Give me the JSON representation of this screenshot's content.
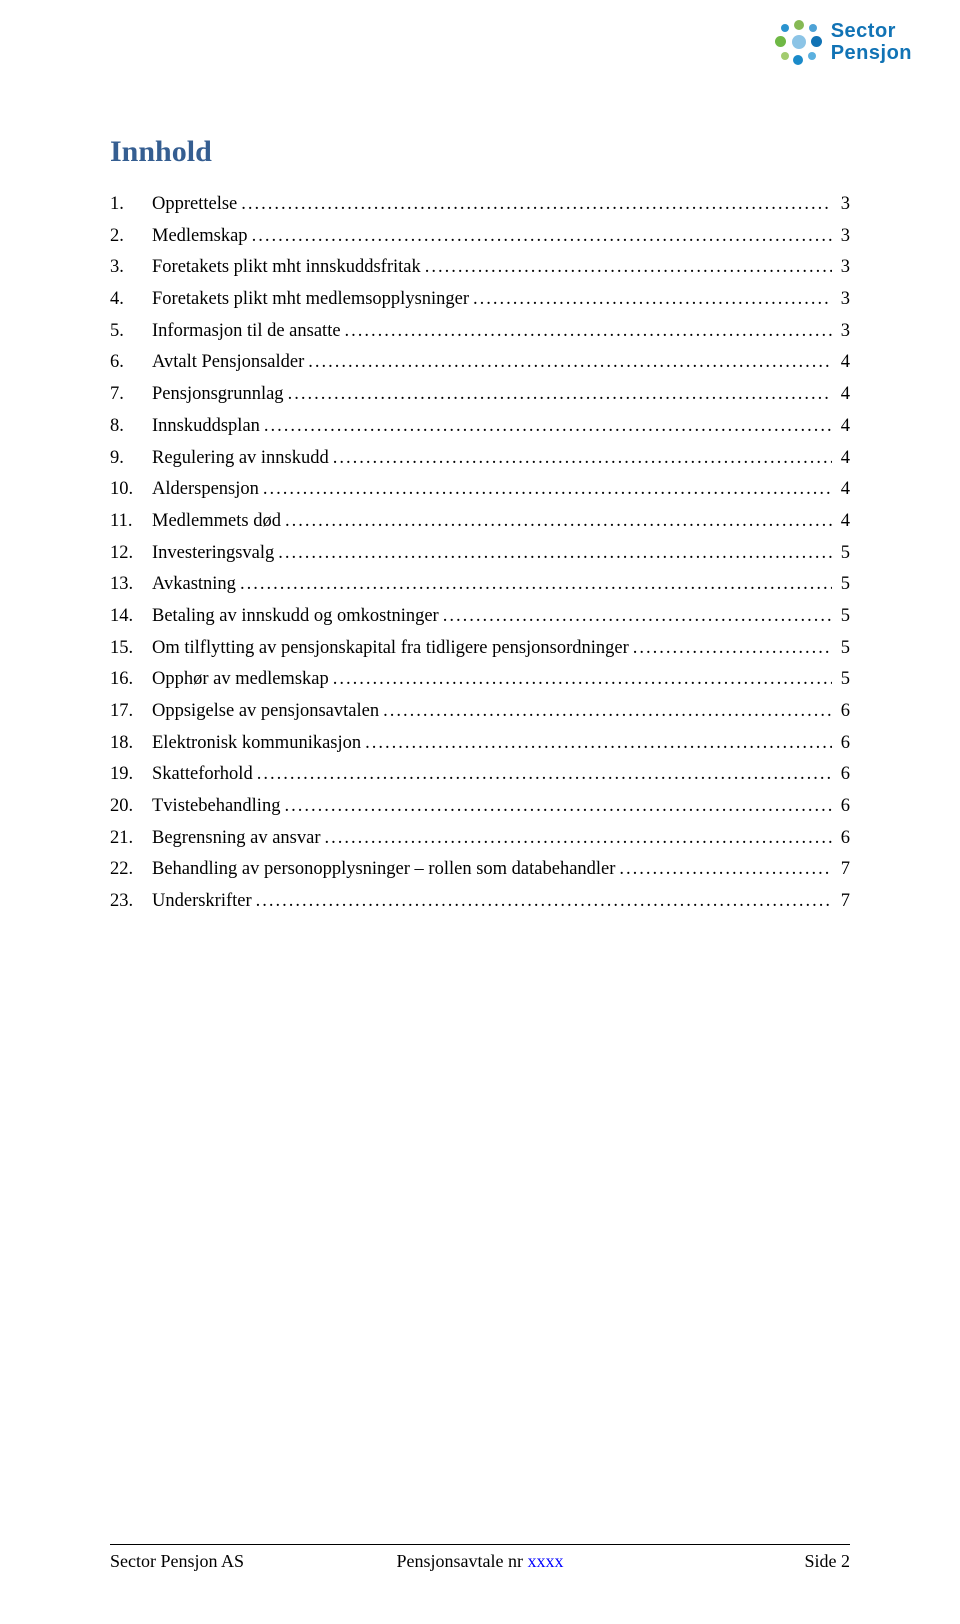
{
  "logo": {
    "line1": "Sector",
    "line2": "Pensjon",
    "text_color": "#1173b5",
    "dot_colors": [
      "#86b954",
      "#4ea2d6",
      "#1173b5",
      "#5bb0df",
      "#1a8ac9",
      "#a3cc6f",
      "#6fb845",
      "#2a93cf",
      "#8cc4e6"
    ]
  },
  "heading": "Innhold",
  "heading_color": "#355e91",
  "toc_fontsize": 18.5,
  "toc": [
    {
      "num": "1.",
      "title": "Opprettelse",
      "page": "3"
    },
    {
      "num": "2.",
      "title": "Medlemskap",
      "page": "3"
    },
    {
      "num": "3.",
      "title": "Foretakets plikt mht innskuddsfritak",
      "page": "3"
    },
    {
      "num": "4.",
      "title": "Foretakets plikt mht medlemsopplysninger",
      "page": "3"
    },
    {
      "num": "5.",
      "title": "Informasjon til de ansatte",
      "page": "3"
    },
    {
      "num": "6.",
      "title": "Avtalt Pensjonsalder",
      "page": "4"
    },
    {
      "num": "7.",
      "title": "Pensjonsgrunnlag",
      "page": "4"
    },
    {
      "num": "8.",
      "title": "Innskuddsplan",
      "page": "4"
    },
    {
      "num": "9.",
      "title": "Regulering av innskudd",
      "page": "4"
    },
    {
      "num": "10.",
      "title": "Alderspensjon",
      "page": "4"
    },
    {
      "num": "11.",
      "title": "Medlemmets død",
      "page": "4"
    },
    {
      "num": "12.",
      "title": "Investeringsvalg",
      "page": "5"
    },
    {
      "num": "13.",
      "title": "Avkastning",
      "page": "5"
    },
    {
      "num": "14.",
      "title": "Betaling av innskudd og omkostninger",
      "page": "5"
    },
    {
      "num": "15.",
      "title": "Om tilflytting av pensjonskapital fra tidligere pensjonsordninger",
      "page": "5"
    },
    {
      "num": "16.",
      "title": "Opphør av medlemskap",
      "page": "5"
    },
    {
      "num": "17.",
      "title": "Oppsigelse av pensjonsavtalen",
      "page": "6"
    },
    {
      "num": "18.",
      "title": "Elektronisk kommunikasjon",
      "page": "6"
    },
    {
      "num": "19.",
      "title": "Skatteforhold",
      "page": "6"
    },
    {
      "num": "20.",
      "title": "Tvistebehandling",
      "page": "6"
    },
    {
      "num": "21.",
      "title": "Begrensning av ansvar",
      "page": "6"
    },
    {
      "num": "22.",
      "title": "Behandling av personopplysninger – rollen som databehandler",
      "page": "7"
    },
    {
      "num": "23.",
      "title": "Underskrifter",
      "page": "7"
    }
  ],
  "footer": {
    "left": "Sector Pensjon AS",
    "center_prefix": "Pensjonsavtale nr ",
    "center_blue": "xxxx",
    "right": "Side 2"
  }
}
